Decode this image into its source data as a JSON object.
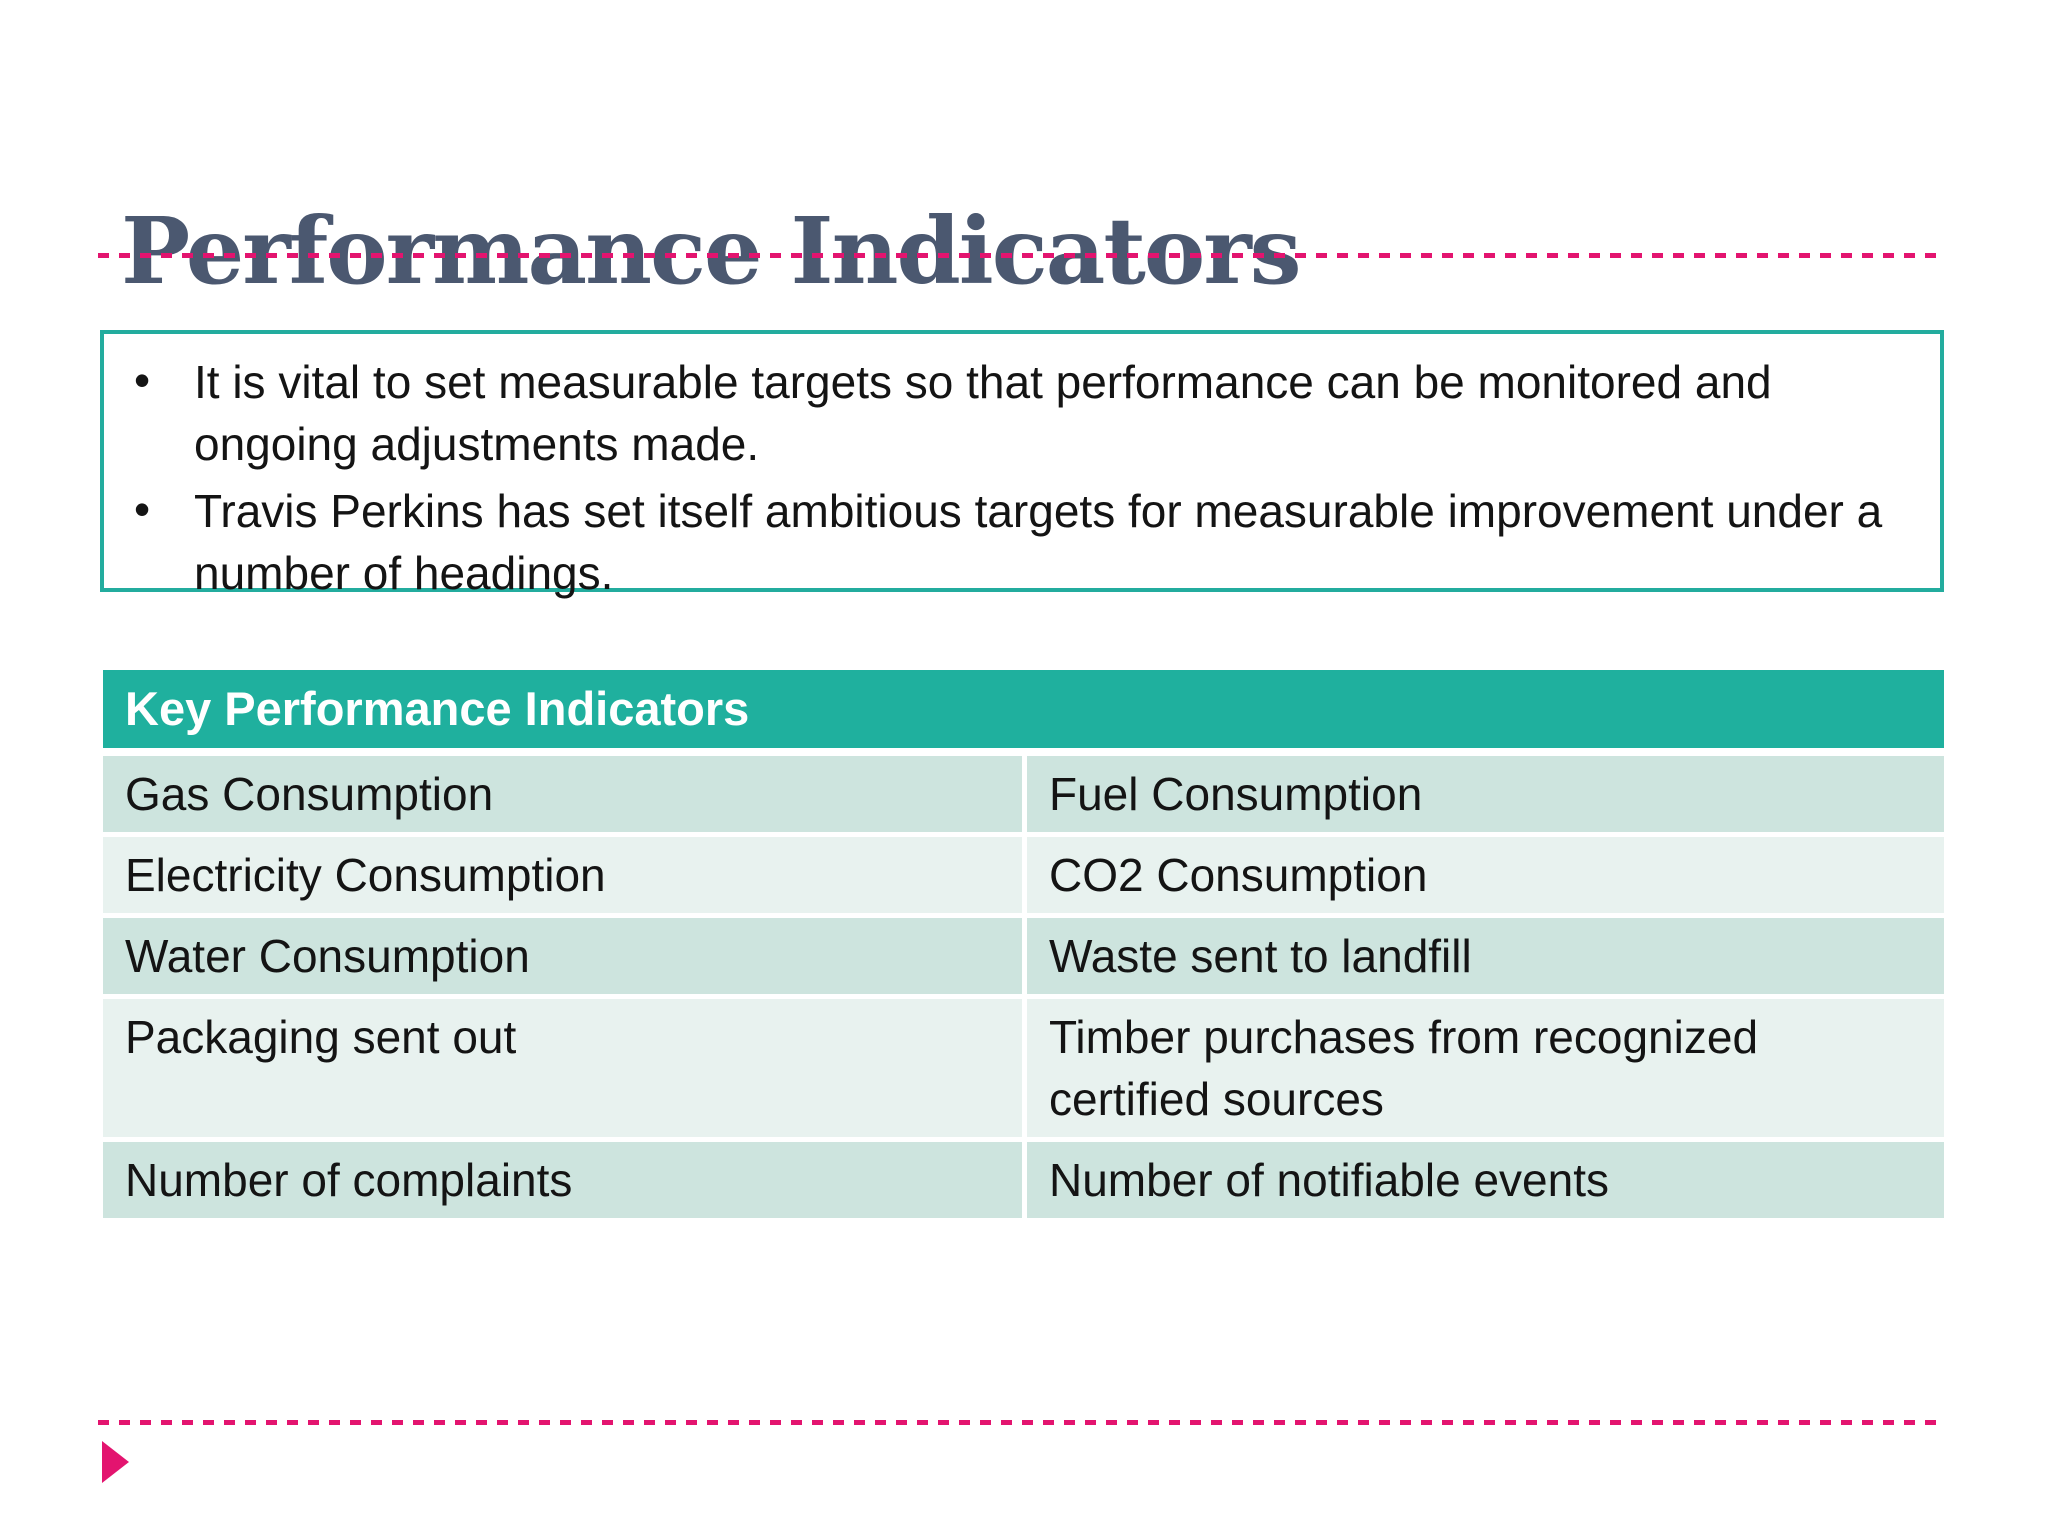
{
  "slide": {
    "title": "Performance Indicators",
    "callout": {
      "bullets": [
        "It is vital to set measurable targets so that performance can be monitored and ongoing adjustments made.",
        "Travis Perkins has set itself ambitious targets for measurable improvement under a number of headings."
      ]
    },
    "table": {
      "header": "Key Performance Indicators",
      "rows": [
        [
          "Gas Consumption",
          "Fuel Consumption"
        ],
        [
          "Electricity Consumption",
          "CO2 Consumption"
        ],
        [
          "Water Consumption",
          "Waste sent to landfill"
        ],
        [
          "Packaging sent out",
          "Timber purchases from recognized certified sources"
        ],
        [
          "Number of complaints",
          "Number of notifiable events"
        ]
      ]
    },
    "colors": {
      "title": "#4B5870",
      "accent_pink": "#E3146F",
      "teal_border": "#23AC9E",
      "table_header_bg": "#1FB09E",
      "row_dark": "#CDE4DE",
      "row_light": "#E8F2EF",
      "text": "#141414"
    },
    "decorations": {
      "top_divider": "pink dashed rule",
      "bottom_divider": "pink dashed rule",
      "footer_marker": "right-pointing pink triangle"
    }
  }
}
